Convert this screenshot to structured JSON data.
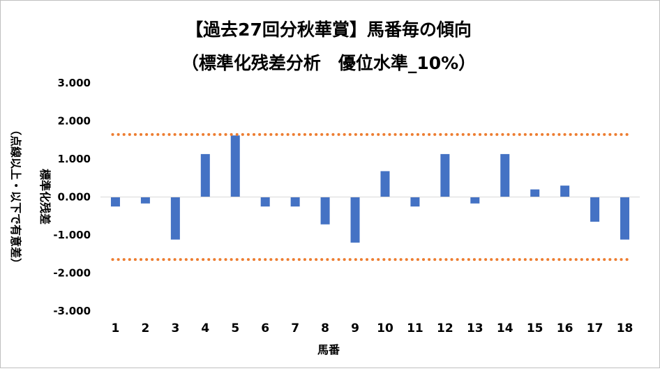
{
  "chart_data": {
    "type": "bar",
    "title_line1": "【過去27回分秋華賞】馬番毎の傾向",
    "title_line2": "（標準化残差分析　優位水準_10%）",
    "xlabel": "馬番",
    "ylabel_line1": "標準化残差",
    "ylabel_line2": "（点線以上・以下で有意差）",
    "categories": [
      "1",
      "2",
      "3",
      "4",
      "5",
      "6",
      "7",
      "8",
      "9",
      "10",
      "11",
      "12",
      "13",
      "14",
      "15",
      "16",
      "17",
      "18"
    ],
    "values": [
      -0.25,
      -0.17,
      -1.12,
      1.13,
      1.62,
      -0.25,
      -0.25,
      -0.72,
      -1.2,
      0.68,
      -0.25,
      1.13,
      -0.17,
      1.13,
      0.2,
      0.3,
      -0.65,
      -1.12
    ],
    "ylim": [
      -3,
      3
    ],
    "yticks": [
      "3.000",
      "2.000",
      "1.000",
      "0.000",
      "-1.000",
      "-2.000",
      "-3.000"
    ],
    "ytick_values": [
      3,
      2,
      1,
      0,
      -1,
      -2,
      -3
    ],
    "threshold_upper": 1.645,
    "threshold_lower": -1.645,
    "bar_color": "#4472c4",
    "threshold_color": "#ed7d31",
    "grid": false,
    "legend": "none"
  }
}
